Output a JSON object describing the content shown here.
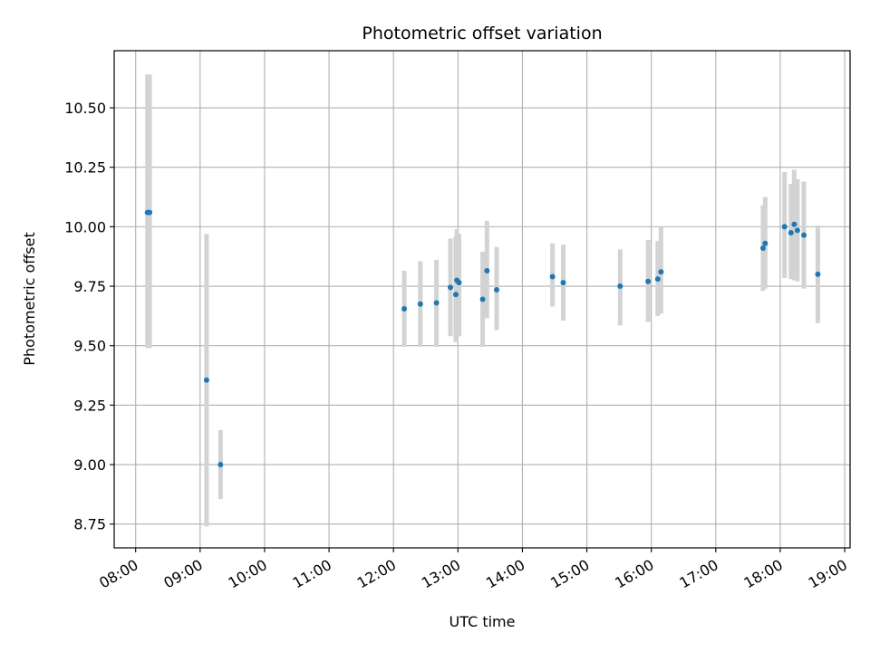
{
  "chart_data": {
    "type": "scatter",
    "title": "Photometric offset variation",
    "xlabel": "UTC time",
    "ylabel": "Photometric offset",
    "x_tick_labels": [
      "08:00",
      "09:00",
      "10:00",
      "11:00",
      "12:00",
      "13:00",
      "14:00",
      "15:00",
      "16:00",
      "17:00",
      "18:00",
      "19:00"
    ],
    "y_tick_labels": [
      "8.75",
      "9.00",
      "9.25",
      "9.50",
      "9.75",
      "10.00",
      "10.25",
      "10.50"
    ],
    "xlim": [
      "07:40",
      "19:05"
    ],
    "ylim": [
      8.65,
      10.74
    ],
    "grid": true,
    "error_bars": true,
    "colors": {
      "point": "#1f77b4",
      "error_bar": "#d3d3d3",
      "grid": "#b0b0b0"
    },
    "points": [
      {
        "x": "08:11",
        "y": 10.06,
        "err_low": 9.49,
        "err_high": 10.64
      },
      {
        "x": "08:13",
        "y": 10.06,
        "err_low": 9.49,
        "err_high": 10.64
      },
      {
        "x": "09:06",
        "y": 9.355,
        "err_low": 8.74,
        "err_high": 9.97
      },
      {
        "x": "09:19",
        "y": 9.0,
        "err_low": 8.855,
        "err_high": 9.145
      },
      {
        "x": "12:10",
        "y": 9.655,
        "err_low": 9.495,
        "err_high": 9.815
      },
      {
        "x": "12:25",
        "y": 9.675,
        "err_low": 9.495,
        "err_high": 9.855
      },
      {
        "x": "12:40",
        "y": 9.68,
        "err_low": 9.495,
        "err_high": 9.86
      },
      {
        "x": "12:53",
        "y": 9.745,
        "err_low": 9.54,
        "err_high": 9.95
      },
      {
        "x": "12:58",
        "y": 9.715,
        "err_low": 9.515,
        "err_high": 9.96
      },
      {
        "x": "12:59",
        "y": 9.775,
        "err_low": 9.56,
        "err_high": 9.99
      },
      {
        "x": "13:01",
        "y": 9.765,
        "err_low": 9.54,
        "err_high": 9.97
      },
      {
        "x": "13:23",
        "y": 9.695,
        "err_low": 9.495,
        "err_high": 9.895
      },
      {
        "x": "13:27",
        "y": 9.815,
        "err_low": 9.615,
        "err_high": 10.025
      },
      {
        "x": "13:36",
        "y": 9.735,
        "err_low": 9.565,
        "err_high": 9.915
      },
      {
        "x": "14:28",
        "y": 9.79,
        "err_low": 9.665,
        "err_high": 9.93
      },
      {
        "x": "14:38",
        "y": 9.765,
        "err_low": 9.605,
        "err_high": 9.925
      },
      {
        "x": "15:31",
        "y": 9.75,
        "err_low": 9.585,
        "err_high": 9.905
      },
      {
        "x": "15:57",
        "y": 9.77,
        "err_low": 9.6,
        "err_high": 9.945
      },
      {
        "x": "16:06",
        "y": 9.78,
        "err_low": 9.625,
        "err_high": 9.94
      },
      {
        "x": "16:09",
        "y": 9.81,
        "err_low": 9.635,
        "err_high": 10.0
      },
      {
        "x": "17:44",
        "y": 9.91,
        "err_low": 9.73,
        "err_high": 10.09
      },
      {
        "x": "17:46",
        "y": 9.93,
        "err_low": 9.74,
        "err_high": 10.125
      },
      {
        "x": "18:04",
        "y": 10.0,
        "err_low": 9.785,
        "err_high": 10.23
      },
      {
        "x": "18:10",
        "y": 9.975,
        "err_low": 9.78,
        "err_high": 10.18
      },
      {
        "x": "18:13",
        "y": 10.01,
        "err_low": 9.775,
        "err_high": 10.24
      },
      {
        "x": "18:16",
        "y": 9.985,
        "err_low": 9.77,
        "err_high": 10.2
      },
      {
        "x": "18:22",
        "y": 9.965,
        "err_low": 9.74,
        "err_high": 10.19
      },
      {
        "x": "18:35",
        "y": 9.8,
        "err_low": 9.595,
        "err_high": 10.005
      }
    ]
  }
}
